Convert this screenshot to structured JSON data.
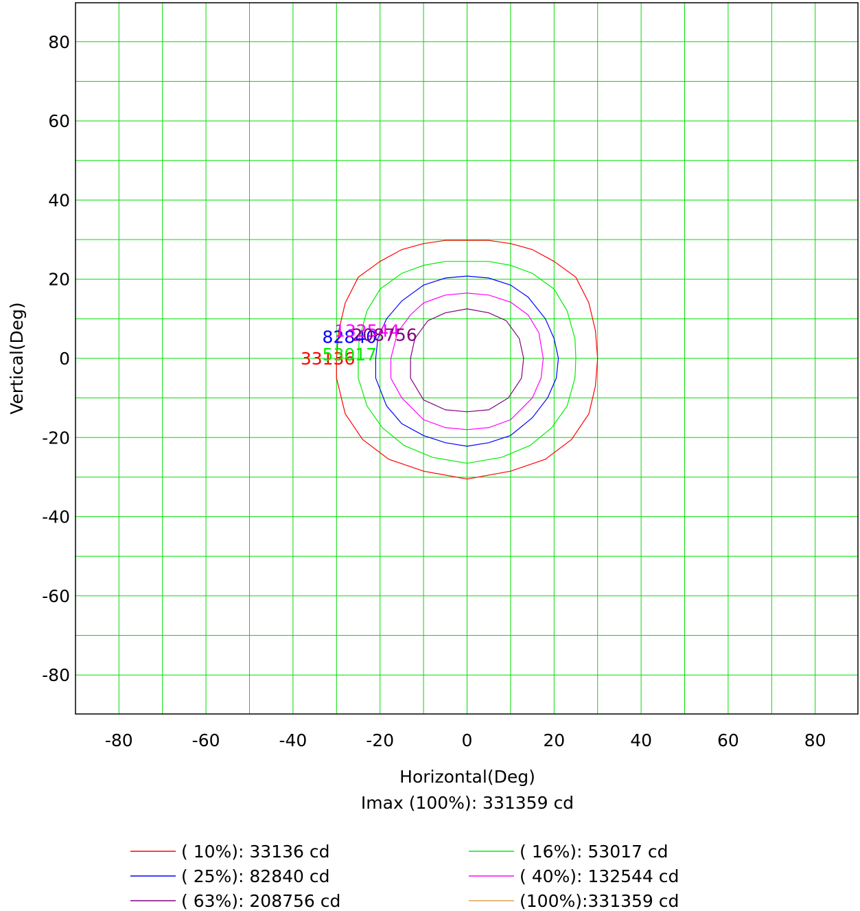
{
  "chart_data": {
    "type": "line",
    "subtype": "isocandela-contour",
    "xlabel": "Horizontal(Deg)",
    "ylabel": "Vertical(Deg)",
    "subtitle": "Imax (100%): 331359 cd",
    "xlim": [
      -90,
      90
    ],
    "ylim": [
      -90,
      90
    ],
    "x_ticks": [
      -80,
      -60,
      -40,
      -20,
      0,
      20,
      40,
      60,
      80
    ],
    "y_ticks": [
      80,
      60,
      40,
      20,
      0,
      -20,
      -40,
      -60,
      -80
    ],
    "grid": true,
    "grid_step": 10,
    "grid_color": "#00dd00",
    "legend_position": "bottom",
    "series": [
      {
        "name": "( 10%): 33136 cd",
        "label": "33136",
        "color": "#ff0000",
        "label_pos": [
          -32,
          0
        ],
        "points": [
          [
            0,
            29.8
          ],
          [
            5,
            29.8
          ],
          [
            10,
            29
          ],
          [
            15,
            27.5
          ],
          [
            20,
            24.5
          ],
          [
            25,
            20.5
          ],
          [
            28,
            14
          ],
          [
            29.5,
            7
          ],
          [
            30,
            0
          ],
          [
            29.5,
            -7
          ],
          [
            28,
            -14
          ],
          [
            24,
            -20.5
          ],
          [
            18,
            -25.5
          ],
          [
            10,
            -28.5
          ],
          [
            0,
            -30.5
          ],
          [
            -10,
            -28.5
          ],
          [
            -18,
            -25.5
          ],
          [
            -24,
            -20.5
          ],
          [
            -28,
            -14
          ],
          [
            -30,
            -5
          ],
          [
            -30,
            0
          ],
          [
            -29.5,
            7
          ],
          [
            -28,
            14
          ],
          [
            -25,
            20.5
          ],
          [
            -20,
            24.5
          ],
          [
            -15,
            27.5
          ],
          [
            -10,
            29
          ],
          [
            -5,
            29.8
          ],
          [
            0,
            29.8
          ]
        ]
      },
      {
        "name": "( 16%): 53017 cd",
        "label": "53017",
        "color": "#00ee00",
        "label_pos": [
          -27,
          1
        ],
        "points": [
          [
            0,
            24.5
          ],
          [
            5,
            24.5
          ],
          [
            10,
            23.5
          ],
          [
            15,
            21.5
          ],
          [
            20,
            17.5
          ],
          [
            23,
            12
          ],
          [
            24.8,
            5
          ],
          [
            25,
            0
          ],
          [
            24.8,
            -5
          ],
          [
            23,
            -12
          ],
          [
            19.5,
            -17.5
          ],
          [
            14.5,
            -22
          ],
          [
            8,
            -25
          ],
          [
            0,
            -26.5
          ],
          [
            -8,
            -25
          ],
          [
            -14.5,
            -22
          ],
          [
            -19.5,
            -17.5
          ],
          [
            -23,
            -12
          ],
          [
            -25,
            -5
          ],
          [
            -25,
            0
          ],
          [
            -24.8,
            5
          ],
          [
            -23,
            12
          ],
          [
            -20,
            17.5
          ],
          [
            -15,
            21.5
          ],
          [
            -10,
            23.5
          ],
          [
            -5,
            24.5
          ],
          [
            0,
            24.5
          ]
        ]
      },
      {
        "name": "( 25%): 82840 cd",
        "label": "82840",
        "color": "#0000ff",
        "label_pos": [
          -27,
          5.5
        ],
        "points": [
          [
            0,
            20.8
          ],
          [
            5,
            20.3
          ],
          [
            10,
            18.5
          ],
          [
            14,
            15.5
          ],
          [
            18,
            10
          ],
          [
            20,
            5
          ],
          [
            21,
            0
          ],
          [
            20.5,
            -5
          ],
          [
            18.5,
            -10
          ],
          [
            15,
            -15
          ],
          [
            10,
            -19.5
          ],
          [
            5,
            -21.3
          ],
          [
            0,
            -22.2
          ],
          [
            -5,
            -21.3
          ],
          [
            -10,
            -19.5
          ],
          [
            -15,
            -16.5
          ],
          [
            -18.5,
            -12
          ],
          [
            -21,
            -5
          ],
          [
            -21,
            0
          ],
          [
            -20.5,
            5
          ],
          [
            -18.5,
            10
          ],
          [
            -15,
            14.5
          ],
          [
            -10,
            18.5
          ],
          [
            -5,
            20.3
          ],
          [
            0,
            20.8
          ]
        ]
      },
      {
        "name": "( 40%): 132544 cd",
        "label": "132544",
        "color": "#ff00ff",
        "label_pos": [
          -23,
          7
        ],
        "points": [
          [
            0,
            16.5
          ],
          [
            5,
            16
          ],
          [
            10,
            14.2
          ],
          [
            14,
            11
          ],
          [
            16.5,
            6.5
          ],
          [
            17.5,
            0
          ],
          [
            17,
            -5
          ],
          [
            15,
            -10
          ],
          [
            10,
            -15.5
          ],
          [
            5,
            -17.5
          ],
          [
            0,
            -18
          ],
          [
            -5,
            -17.5
          ],
          [
            -10,
            -15.5
          ],
          [
            -15,
            -10
          ],
          [
            -17.5,
            -5
          ],
          [
            -17.5,
            0
          ],
          [
            -16,
            6.5
          ],
          [
            -13,
            11
          ],
          [
            -10,
            14
          ],
          [
            -5,
            16
          ],
          [
            0,
            16.5
          ]
        ]
      },
      {
        "name": "( 63%): 208756 cd",
        "label": "208756",
        "color": "#800080",
        "label_pos": [
          -19,
          6
        ],
        "points": [
          [
            0,
            12.5
          ],
          [
            5,
            11.5
          ],
          [
            9,
            9.5
          ],
          [
            12,
            5
          ],
          [
            13,
            0
          ],
          [
            12.5,
            -5
          ],
          [
            9.5,
            -10
          ],
          [
            5,
            -13
          ],
          [
            0,
            -13.5
          ],
          [
            -5,
            -13
          ],
          [
            -10,
            -10.5
          ],
          [
            -13,
            -5
          ],
          [
            -13,
            0
          ],
          [
            -12,
            5
          ],
          [
            -9,
            9.5
          ],
          [
            -5,
            11.5
          ],
          [
            0,
            12.5
          ]
        ]
      },
      {
        "name": "(100%):331359 cd",
        "label": "",
        "color": "#e0a050",
        "points": []
      }
    ]
  }
}
